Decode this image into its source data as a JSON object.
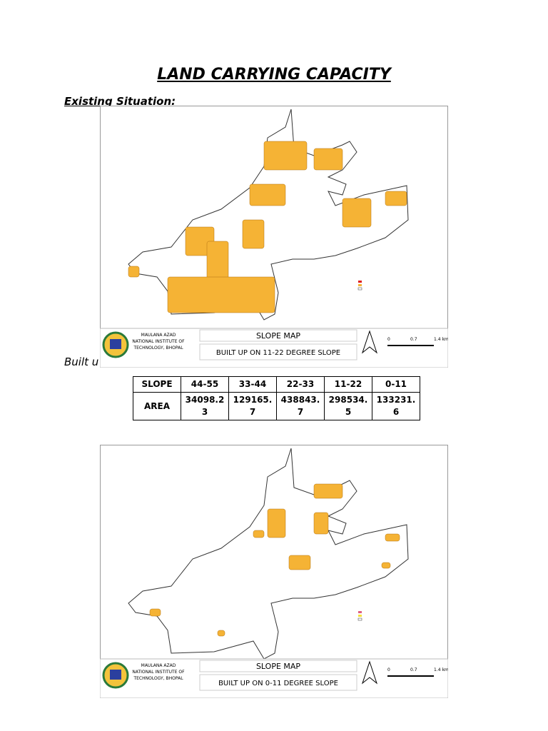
{
  "title": "LAND CARRYING CAPACITY",
  "section_heading": "Existing Situation:",
  "caption": "Built u",
  "maps": [
    {
      "institute": [
        "MAULANA AZAD",
        "NATIONAL INSTITUTE OF",
        "TECHNOLOGY, BHOPAL"
      ],
      "map_title": "SLOPE MAP",
      "subtitle": "BUILT UP ON 11-22 DEGREE SLOPE",
      "scale": [
        "0",
        "0.7",
        "1.4 km"
      ]
    },
    {
      "institute": [
        "MAULANA AZAD",
        "NATIONAL INSTITUTE OF",
        "TECHNOLOGY, BHOPAL"
      ],
      "map_title": "SLOPE MAP",
      "subtitle": "BUILT UP ON 0-11 DEGREE SLOPE",
      "scale": [
        "0",
        "0.7",
        "1.4 km"
      ]
    }
  ],
  "table": {
    "header": [
      "SLOPE",
      "44-55",
      "33-44",
      "22-33",
      "11-22",
      "0-11"
    ],
    "rows": [
      [
        "AREA",
        "34098.23",
        "129165.7",
        "438843.7",
        "298534.5",
        "133231.6"
      ]
    ]
  }
}
